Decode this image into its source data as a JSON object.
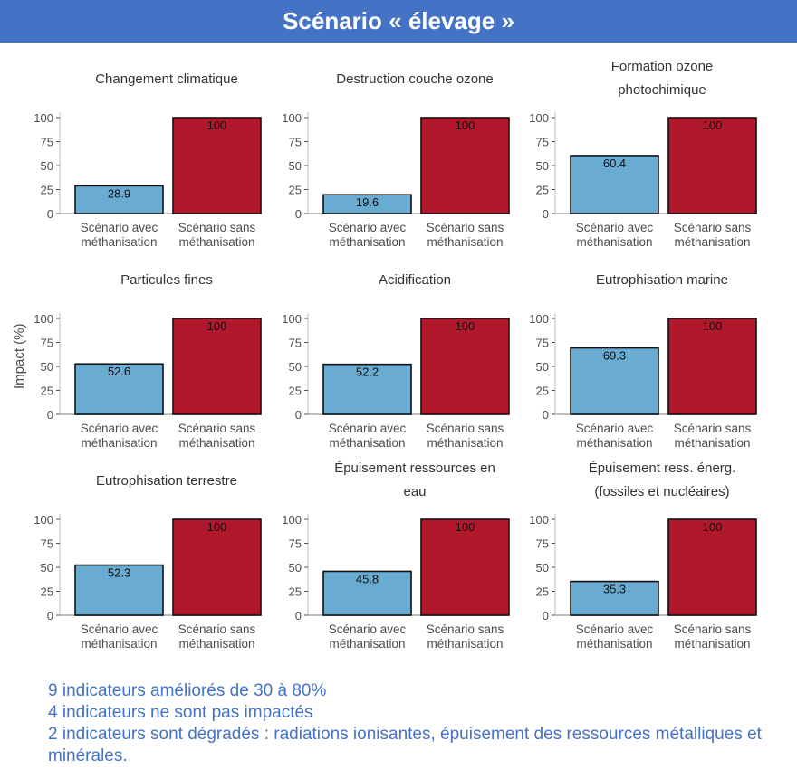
{
  "title": "Scénario « élevage »",
  "y_axis_label": "Impact (%)",
  "colors": {
    "with": "#6aabd2",
    "without": "#b2182b",
    "header": "#4472c4",
    "notes": "#4472c4"
  },
  "chart_data": [
    {
      "type": "bar",
      "title": "Changement climatique",
      "categories": [
        "Scénario avec méthanisation",
        "Scénario sans méthanisation"
      ],
      "values": [
        28.9,
        100
      ],
      "labels": [
        "28.9",
        "100"
      ],
      "ylim": [
        0,
        100
      ],
      "yticks": [
        0,
        25,
        50,
        75,
        100
      ],
      "ylabel": "Impact (%)"
    },
    {
      "type": "bar",
      "title": "Destruction couche ozone",
      "categories": [
        "Scénario avec méthanisation",
        "Scénario sans méthanisation"
      ],
      "values": [
        19.6,
        100
      ],
      "labels": [
        "19.6",
        "100"
      ],
      "ylim": [
        0,
        100
      ],
      "yticks": [
        0,
        25,
        50,
        75,
        100
      ],
      "ylabel": "Impact (%)"
    },
    {
      "type": "bar",
      "title": "Formation ozone photochimique",
      "categories": [
        "Scénario avec méthanisation",
        "Scénario sans méthanisation"
      ],
      "values": [
        60.4,
        100
      ],
      "labels": [
        "60.4",
        "100"
      ],
      "ylim": [
        0,
        100
      ],
      "yticks": [
        0,
        25,
        50,
        75,
        100
      ],
      "ylabel": "Impact (%)"
    },
    {
      "type": "bar",
      "title": "Particules fines",
      "categories": [
        "Scénario avec méthanisation",
        "Scénario sans méthanisation"
      ],
      "values": [
        52.6,
        100
      ],
      "labels": [
        "52.6",
        "100"
      ],
      "ylim": [
        0,
        100
      ],
      "yticks": [
        0,
        25,
        50,
        75,
        100
      ],
      "ylabel": "Impact (%)"
    },
    {
      "type": "bar",
      "title": "Acidification",
      "categories": [
        "Scénario avec méthanisation",
        "Scénario sans méthanisation"
      ],
      "values": [
        52.2,
        100
      ],
      "labels": [
        "52.2",
        "100"
      ],
      "ylim": [
        0,
        100
      ],
      "yticks": [
        0,
        25,
        50,
        75,
        100
      ],
      "ylabel": "Impact (%)"
    },
    {
      "type": "bar",
      "title": "Eutrophisation marine",
      "categories": [
        "Scénario avec méthanisation",
        "Scénario sans méthanisation"
      ],
      "values": [
        69.3,
        100
      ],
      "labels": [
        "69.3",
        "100"
      ],
      "ylim": [
        0,
        100
      ],
      "yticks": [
        0,
        25,
        50,
        75,
        100
      ],
      "ylabel": "Impact (%)"
    },
    {
      "type": "bar",
      "title": "Eutrophisation terrestre",
      "categories": [
        "Scénario avec méthanisation",
        "Scénario sans méthanisation"
      ],
      "values": [
        52.3,
        100
      ],
      "labels": [
        "52.3",
        "100"
      ],
      "ylim": [
        0,
        100
      ],
      "yticks": [
        0,
        25,
        50,
        75,
        100
      ],
      "ylabel": "Impact (%)"
    },
    {
      "type": "bar",
      "title": "Épuisement ressources en eau",
      "categories": [
        "Scénario avec méthanisation",
        "Scénario sans méthanisation"
      ],
      "values": [
        45.8,
        100
      ],
      "labels": [
        "45.8",
        "100"
      ],
      "ylim": [
        0,
        100
      ],
      "yticks": [
        0,
        25,
        50,
        75,
        100
      ],
      "ylabel": "Impact (%)"
    },
    {
      "type": "bar",
      "title": "Épuisement ress. énerg. (fossiles et nucléaires)",
      "categories": [
        "Scénario avec méthanisation",
        "Scénario sans méthanisation"
      ],
      "values": [
        35.3,
        100
      ],
      "labels": [
        "35.3",
        "100"
      ],
      "ylim": [
        0,
        100
      ],
      "yticks": [
        0,
        25,
        50,
        75,
        100
      ],
      "ylabel": "Impact (%)"
    }
  ],
  "notes": [
    "9 indicateurs améliorés de 30 à 80%",
    "4 indicateurs ne sont pas impactés",
    "2 indicateurs sont dégradés : radiations ionisantes, épuisement des ressources métalliques et minérales."
  ]
}
